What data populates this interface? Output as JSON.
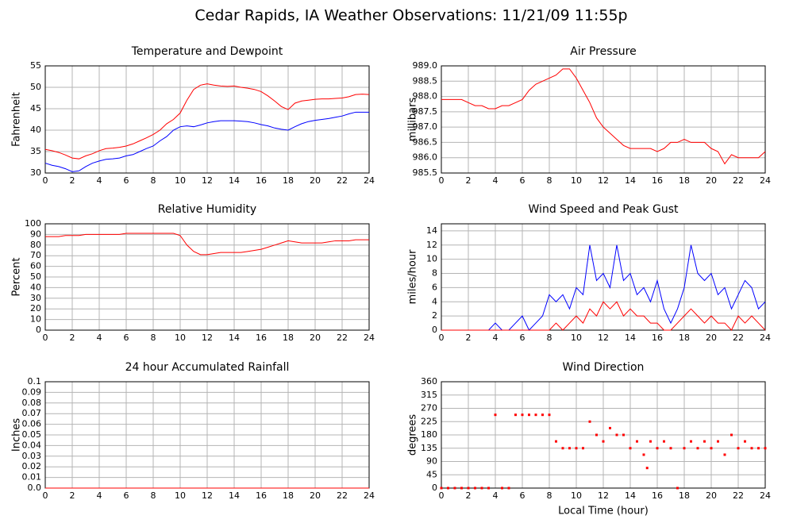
{
  "title": "Cedar Rapids, IA Weather Observations: 11/21/09 11:55p",
  "chart_data": [
    {
      "type": "line",
      "title": "Temperature and Dewpoint",
      "ylabel": "Fahrenheit",
      "x": [
        0,
        0.5,
        1,
        1.5,
        2,
        2.5,
        3,
        3.5,
        4,
        4.5,
        5,
        5.5,
        6,
        6.5,
        7,
        7.5,
        8,
        8.5,
        9,
        9.5,
        10,
        10.5,
        11,
        11.5,
        12,
        12.5,
        13,
        13.5,
        14,
        14.5,
        15,
        15.5,
        16,
        16.5,
        17,
        17.5,
        18,
        18.5,
        19,
        19.5,
        20,
        20.5,
        21,
        21.5,
        22,
        22.5,
        23,
        23.5,
        24
      ],
      "series": [
        {
          "color": "#ff0000",
          "values": [
            35.5,
            35.2,
            34.8,
            34.2,
            33.5,
            33.3,
            34,
            34.5,
            35.2,
            35.7,
            35.8,
            36,
            36.3,
            36.8,
            37.5,
            38.2,
            39,
            40,
            41.5,
            42.5,
            44,
            47,
            49.5,
            50.5,
            50.8,
            50.5,
            50.3,
            50.2,
            50.3,
            50,
            49.8,
            49.5,
            49,
            48,
            46.8,
            45.5,
            44.8,
            46.3,
            46.8,
            47,
            47.2,
            47.3,
            47.3,
            47.4,
            47.5,
            47.8,
            48.3,
            48.4,
            48.3
          ]
        },
        {
          "color": "#0000ff",
          "values": [
            32.3,
            31.8,
            31.5,
            31,
            30.3,
            30.5,
            31.5,
            32.3,
            32.8,
            33.2,
            33.3,
            33.5,
            34,
            34.3,
            35,
            35.7,
            36.3,
            37.5,
            38.5,
            40,
            40.8,
            41,
            40.8,
            41.2,
            41.7,
            42,
            42.2,
            42.2,
            42.2,
            42.1,
            42,
            41.7,
            41.3,
            41,
            40.5,
            40.2,
            40,
            40.8,
            41.5,
            42,
            42.3,
            42.5,
            42.7,
            43,
            43.3,
            43.8,
            44.2,
            44.2,
            44.2
          ]
        }
      ],
      "xlim": [
        0,
        24
      ],
      "xticks": [
        0,
        2,
        4,
        6,
        8,
        10,
        12,
        14,
        16,
        18,
        20,
        22,
        24
      ],
      "ylim": [
        30,
        55
      ],
      "yticks": [
        30,
        35,
        40,
        45,
        50,
        55
      ],
      "grid": true
    },
    {
      "type": "line",
      "title": "Air Pressure",
      "ylabel": "millibars",
      "x": [
        0,
        0.5,
        1,
        1.5,
        2,
        2.5,
        3,
        3.5,
        4,
        4.5,
        5,
        5.5,
        6,
        6.5,
        7,
        7.5,
        8,
        8.5,
        9,
        9.5,
        10,
        10.5,
        11,
        11.5,
        12,
        12.5,
        13,
        13.5,
        14,
        14.5,
        15,
        15.5,
        16,
        16.5,
        17,
        17.5,
        18,
        18.5,
        19,
        19.5,
        20,
        20.5,
        21,
        21.5,
        22,
        22.5,
        23,
        23.5,
        24
      ],
      "series": [
        {
          "color": "#ff0000",
          "values": [
            987.9,
            987.9,
            987.9,
            987.9,
            987.8,
            987.7,
            987.7,
            987.6,
            987.6,
            987.7,
            987.7,
            987.8,
            987.9,
            988.2,
            988.4,
            988.5,
            988.6,
            988.7,
            988.9,
            988.9,
            988.6,
            988.2,
            987.8,
            987.3,
            987.0,
            986.8,
            986.6,
            986.4,
            986.3,
            986.3,
            986.3,
            986.3,
            986.2,
            986.3,
            986.5,
            986.5,
            986.6,
            986.5,
            986.5,
            986.5,
            986.3,
            986.2,
            985.8,
            986.1,
            986.0,
            986.0,
            986.0,
            986.0,
            986.2
          ]
        }
      ],
      "xlim": [
        0,
        24
      ],
      "xticks": [
        0,
        2,
        4,
        6,
        8,
        10,
        12,
        14,
        16,
        18,
        20,
        22,
        24
      ],
      "ylim": [
        985.5,
        989.0
      ],
      "yticks": [
        985.5,
        {
          "value": 986,
          "label": "986.0"
        },
        986.5,
        {
          "value": 987,
          "label": "987.0"
        },
        987.5,
        {
          "value": 988,
          "label": "988.0"
        },
        988.5,
        {
          "value": 989,
          "label": "989.0"
        }
      ],
      "grid": true
    },
    {
      "type": "line",
      "title": "Relative Humidity",
      "ylabel": "Percent",
      "x": [
        0,
        0.5,
        1,
        1.5,
        2,
        2.5,
        3,
        3.5,
        4,
        4.5,
        5,
        5.5,
        6,
        6.5,
        7,
        7.5,
        8,
        8.5,
        9,
        9.5,
        10,
        10.5,
        11,
        11.5,
        12,
        12.5,
        13,
        13.5,
        14,
        14.5,
        15,
        15.5,
        16,
        16.5,
        17,
        17.5,
        18,
        18.5,
        19,
        19.5,
        20,
        20.5,
        21,
        21.5,
        22,
        22.5,
        23,
        23.5,
        24
      ],
      "series": [
        {
          "color": "#ff0000",
          "values": [
            88,
            88,
            88,
            89,
            89,
            89,
            90,
            90,
            90,
            90,
            90,
            90,
            91,
            91,
            91,
            91,
            91,
            91,
            91,
            91,
            89,
            80,
            74,
            71,
            71,
            72,
            73,
            73,
            73,
            73,
            74,
            75,
            76,
            78,
            80,
            82,
            84,
            83,
            82,
            82,
            82,
            82,
            83,
            84,
            84,
            84,
            85,
            85,
            85
          ]
        }
      ],
      "xlim": [
        0,
        24
      ],
      "xticks": [
        0,
        2,
        4,
        6,
        8,
        10,
        12,
        14,
        16,
        18,
        20,
        22,
        24
      ],
      "ylim": [
        0,
        100
      ],
      "yticks": [
        0,
        10,
        20,
        30,
        40,
        50,
        60,
        70,
        80,
        90,
        100
      ],
      "grid": true
    },
    {
      "type": "line",
      "title": "Wind Speed and Peak Gust",
      "ylabel": "miles/hour",
      "x": [
        0,
        0.5,
        1,
        1.5,
        2,
        2.5,
        3,
        3.5,
        4,
        4.5,
        5,
        5.5,
        6,
        6.5,
        7,
        7.5,
        8,
        8.5,
        9,
        9.5,
        10,
        10.5,
        11,
        11.5,
        12,
        12.5,
        13,
        13.5,
        14,
        14.5,
        15,
        15.5,
        16,
        16.5,
        17,
        17.5,
        18,
        18.5,
        19,
        19.5,
        20,
        20.5,
        21,
        21.5,
        22,
        22.5,
        23,
        23.5,
        24
      ],
      "series": [
        {
          "color": "#0000ff",
          "values": [
            0,
            0,
            0,
            0,
            0,
            0,
            0,
            0,
            1,
            0,
            0,
            1,
            2,
            0,
            1,
            2,
            5,
            4,
            5,
            3,
            6,
            5,
            12,
            7,
            8,
            6,
            12,
            7,
            8,
            5,
            6,
            4,
            7,
            3,
            1,
            3,
            6,
            12,
            8,
            7,
            8,
            5,
            6,
            3,
            5,
            7,
            6,
            3,
            4
          ]
        },
        {
          "color": "#ff0000",
          "values": [
            0,
            0,
            0,
            0,
            0,
            0,
            0,
            0,
            0,
            0,
            0,
            0,
            0,
            0,
            0,
            0,
            0,
            1,
            0,
            1,
            2,
            1,
            3,
            2,
            4,
            3,
            4,
            2,
            3,
            2,
            2,
            1,
            1,
            0,
            0,
            1,
            2,
            3,
            2,
            1,
            2,
            1,
            1,
            0,
            2,
            1,
            2,
            1,
            0
          ]
        }
      ],
      "xlim": [
        0,
        24
      ],
      "xticks": [
        0,
        2,
        4,
        6,
        8,
        10,
        12,
        14,
        16,
        18,
        20,
        22,
        24
      ],
      "ylim": [
        0,
        15
      ],
      "yticks": [
        0,
        2,
        4,
        6,
        8,
        10,
        12,
        14
      ],
      "grid": true
    },
    {
      "type": "line",
      "title": "24 hour Accumulated Rainfall",
      "ylabel": "Inches",
      "x": [
        0,
        24
      ],
      "series": [
        {
          "color": "#ff0000",
          "values": [
            0,
            0
          ]
        }
      ],
      "xlim": [
        0,
        24
      ],
      "xticks": [
        0,
        2,
        4,
        6,
        8,
        10,
        12,
        14,
        16,
        18,
        20,
        22,
        24
      ],
      "ylim": [
        0,
        0.1
      ],
      "yticks": [
        {
          "value": 0,
          "label": "0.0"
        },
        0.01,
        0.02,
        0.03,
        0.04,
        0.05,
        0.06,
        0.07,
        0.08,
        0.09,
        0.1
      ],
      "grid": true
    },
    {
      "type": "scatter",
      "title": "Wind Direction",
      "ylabel": "degrees",
      "xlabel": "Local Time (hour)",
      "x": [
        0,
        0.5,
        1,
        1.5,
        2,
        2.5,
        3,
        3.5,
        4,
        4.5,
        5,
        5.5,
        6,
        6.5,
        7,
        7.5,
        8,
        8.5,
        9,
        9.5,
        10,
        10.5,
        11,
        11.5,
        12,
        12.5,
        13,
        13.5,
        14,
        14.5,
        15,
        15.25,
        15.5,
        16,
        16.5,
        17,
        17.5,
        18,
        18.5,
        19,
        19.5,
        20,
        20.5,
        21,
        21.5,
        22,
        22.5,
        23,
        23.5,
        24
      ],
      "series": [
        {
          "color": "#ff0000",
          "values": [
            0,
            0,
            0,
            0,
            0,
            0,
            0,
            0,
            248,
            0,
            0,
            248,
            248,
            248,
            248,
            248,
            248,
            158,
            135,
            135,
            135,
            135,
            225,
            180,
            158,
            203,
            180,
            180,
            135,
            158,
            113,
            68,
            158,
            135,
            158,
            135,
            0,
            135,
            158,
            135,
            158,
            135,
            158,
            113,
            180,
            135,
            158,
            135,
            135,
            135
          ]
        }
      ],
      "xlim": [
        0,
        24
      ],
      "xticks": [
        0,
        2,
        4,
        6,
        8,
        10,
        12,
        14,
        16,
        18,
        20,
        22,
        24
      ],
      "ylim": [
        0,
        360
      ],
      "yticks": [
        0,
        45,
        90,
        135,
        180,
        225,
        270,
        315,
        360
      ],
      "grid": true
    }
  ]
}
